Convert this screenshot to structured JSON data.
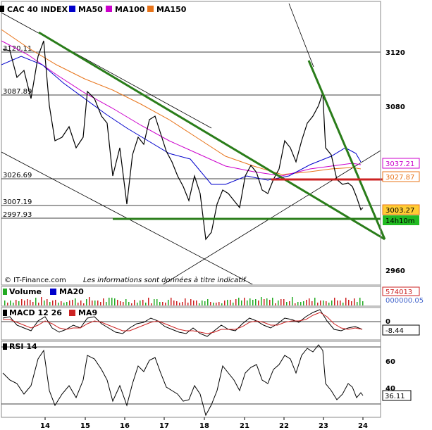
{
  "legend": {
    "main": [
      "CAC 40 INDEX",
      "MA50",
      "MA100",
      "MA150"
    ],
    "main_colors": [
      "#000000",
      "#0000cc",
      "#cc00cc",
      "#e8741a"
    ],
    "volume": [
      "Volume",
      "MA20"
    ],
    "macd": [
      "MACD 12 26",
      "MA9"
    ],
    "rsi": [
      "RSI 14"
    ]
  },
  "watermark": {
    "source": "© IT-Finance.com",
    "disclaimer": "Les informations sont données à titre indicatif"
  },
  "levels": [
    {
      "value": 3120.11,
      "label": "3120.11"
    },
    {
      "value": 3087.89,
      "label": "3087.89"
    },
    {
      "value": 3026.69,
      "label": "3026.69"
    },
    {
      "value": 3007.19,
      "label": "3007.19"
    },
    {
      "value": 2997.93,
      "label": "2997.93"
    }
  ],
  "price_axis": [
    "3120",
    "3080",
    "2960"
  ],
  "price_tags": [
    {
      "value": "3037.21",
      "color": "#cc00cc"
    },
    {
      "value": "3027.87",
      "color": "#e8741a"
    },
    {
      "value": "3003.27",
      "color": "#e8741a"
    },
    {
      "value": "14h10m",
      "color": "#11aa11"
    }
  ],
  "volume_tags": [
    "574013",
    "000000.05"
  ],
  "macd_axis": [
    "0"
  ],
  "macd_value": "-8.44",
  "rsi_axis": [
    "60",
    "40"
  ],
  "rsi_value": "36.11",
  "x_labels": [
    "14",
    "15",
    "16",
    "17",
    "18",
    "21",
    "22",
    "23",
    "24"
  ],
  "chart_data": {
    "type": "line",
    "title": "CAC 40 INDEX",
    "x": [
      "14",
      "15",
      "16",
      "17",
      "18",
      "21",
      "22",
      "23",
      "24"
    ],
    "y_range": [
      2950,
      3140
    ],
    "series": [
      {
        "name": "CAC 40 INDEX",
        "values": [
          3100,
          3085,
          3030,
          3065,
          2975,
          3025,
          3045,
          3085,
          3003
        ]
      },
      {
        "name": "MA50",
        "values": [
          3105,
          3075,
          3055,
          3040,
          3025,
          3020,
          3025,
          3035,
          3030
        ]
      },
      {
        "name": "MA100",
        "values": [
          3112,
          3090,
          3070,
          3055,
          3042,
          3035,
          3032,
          3036,
          3037
        ]
      },
      {
        "name": "MA150",
        "values": [
          3115,
          3100,
          3085,
          3070,
          3055,
          3040,
          3030,
          3028,
          3028
        ]
      }
    ],
    "rsi_range": [
      20,
      80
    ],
    "macd_last": -8.44,
    "rsi_last": 36.11
  }
}
